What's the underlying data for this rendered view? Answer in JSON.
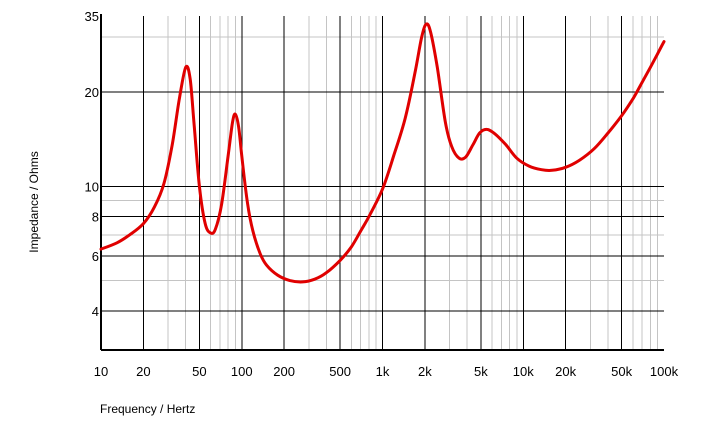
{
  "chart_data": {
    "type": "line",
    "title": "",
    "xlabel": "Frequency / Hertz",
    "ylabel": "Impedance / Ohms",
    "xscale": "log",
    "yscale": "log",
    "xlim": [
      10,
      100000
    ],
    "ylim": [
      3,
      35
    ],
    "grid": true,
    "x_ticks": [
      {
        "value": 10,
        "label": "10"
      },
      {
        "value": 20,
        "label": "20"
      },
      {
        "value": 50,
        "label": "50"
      },
      {
        "value": 100,
        "label": "100"
      },
      {
        "value": 200,
        "label": "200"
      },
      {
        "value": 500,
        "label": "500"
      },
      {
        "value": 1000,
        "label": "1k"
      },
      {
        "value": 2000,
        "label": "2k"
      },
      {
        "value": 5000,
        "label": "5k"
      },
      {
        "value": 10000,
        "label": "10k"
      },
      {
        "value": 20000,
        "label": "20k"
      },
      {
        "value": 50000,
        "label": "50k"
      },
      {
        "value": 100000,
        "label": "100k"
      }
    ],
    "y_ticks": [
      {
        "value": 4,
        "label": "4"
      },
      {
        "value": 6,
        "label": "6"
      },
      {
        "value": 8,
        "label": "8"
      },
      {
        "value": 10,
        "label": "10"
      },
      {
        "value": 20,
        "label": "20"
      },
      {
        "value": 35,
        "label": "35"
      }
    ],
    "series": [
      {
        "color": "#e00000",
        "points": [
          [
            10,
            6.3
          ],
          [
            13,
            6.6
          ],
          [
            16,
            7.0
          ],
          [
            20,
            7.6
          ],
          [
            24,
            8.6
          ],
          [
            28,
            10.2
          ],
          [
            32,
            13.5
          ],
          [
            36,
            19
          ],
          [
            40,
            24
          ],
          [
            43,
            22
          ],
          [
            46,
            15.5
          ],
          [
            50,
            10
          ],
          [
            55,
            7.6
          ],
          [
            60,
            7.1
          ],
          [
            65,
            7.3
          ],
          [
            72,
            8.8
          ],
          [
            80,
            12.5
          ],
          [
            86,
            16
          ],
          [
            90,
            17
          ],
          [
            95,
            15.5
          ],
          [
            100,
            12.5
          ],
          [
            110,
            8.8
          ],
          [
            120,
            7.2
          ],
          [
            135,
            6.1
          ],
          [
            150,
            5.6
          ],
          [
            180,
            5.2
          ],
          [
            220,
            5.0
          ],
          [
            270,
            4.95
          ],
          [
            330,
            5.05
          ],
          [
            400,
            5.3
          ],
          [
            500,
            5.8
          ],
          [
            600,
            6.4
          ],
          [
            700,
            7.2
          ],
          [
            800,
            8.0
          ],
          [
            1000,
            9.8
          ],
          [
            1200,
            12.5
          ],
          [
            1450,
            16.5
          ],
          [
            1700,
            23
          ],
          [
            1900,
            30
          ],
          [
            2050,
            33
          ],
          [
            2200,
            31
          ],
          [
            2450,
            24
          ],
          [
            2800,
            16
          ],
          [
            3100,
            13.4
          ],
          [
            3500,
            12.3
          ],
          [
            3900,
            12.4
          ],
          [
            4400,
            13.6
          ],
          [
            4900,
            14.8
          ],
          [
            5500,
            15.2
          ],
          [
            6300,
            14.7
          ],
          [
            7500,
            13.6
          ],
          [
            9000,
            12.3
          ],
          [
            11000,
            11.6
          ],
          [
            13500,
            11.3
          ],
          [
            16000,
            11.25
          ],
          [
            20000,
            11.5
          ],
          [
            25000,
            12.1
          ],
          [
            32000,
            13.2
          ],
          [
            40000,
            14.8
          ],
          [
            50000,
            16.8
          ],
          [
            60000,
            19
          ],
          [
            70000,
            21.5
          ],
          [
            80000,
            24
          ],
          [
            90000,
            26.5
          ],
          [
            100000,
            29
          ]
        ]
      }
    ]
  }
}
